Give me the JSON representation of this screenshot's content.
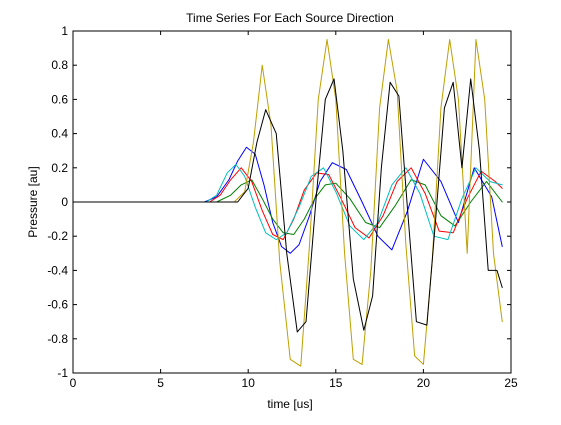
{
  "chart_data": {
    "type": "line",
    "title": "Time Series For Each Source Direction",
    "xlabel": "time [us]",
    "ylabel": "Pressure [au]",
    "xlim": [
      0,
      25
    ],
    "ylim": [
      -1,
      1
    ],
    "xticks": [
      0,
      5,
      10,
      15,
      20,
      25
    ],
    "yticks": [
      -1,
      -0.8,
      -0.6,
      -0.4,
      -0.2,
      0,
      0.2,
      0.4,
      0.6,
      0.8,
      1
    ],
    "xtick_labels": [
      "0",
      "5",
      "10",
      "15",
      "20",
      "25"
    ],
    "ytick_labels": [
      "-1",
      "-0.8",
      "-0.6",
      "-0.4",
      "-0.2",
      "0",
      "0.2",
      "0.4",
      "0.6",
      "0.8",
      "1"
    ],
    "grid": false,
    "legend": "none",
    "series": [
      {
        "color": "#0000ff",
        "x": [
          0,
          7.5,
          8.2,
          8.9,
          9.4,
          9.9,
          10.4,
          10.9,
          11.4,
          11.9,
          12.4,
          12.9,
          13.5,
          14.1,
          14.8,
          15.6,
          16.5,
          17.4,
          18.2,
          19.1,
          20.0,
          21.0,
          22.0,
          22.9,
          23.9,
          24.5
        ],
        "y": [
          0,
          0,
          0.03,
          0.13,
          0.24,
          0.32,
          0.28,
          0.1,
          -0.12,
          -0.26,
          -0.3,
          -0.25,
          -0.08,
          0.12,
          0.23,
          0.19,
          0,
          -0.2,
          -0.28,
          -0.05,
          0.25,
          0.12,
          -0.12,
          0.2,
          0.03,
          -0.26
        ]
      },
      {
        "color": "#008000",
        "x": [
          0,
          8.2,
          9.0,
          9.6,
          10.2,
          10.8,
          11.4,
          12.0,
          12.6,
          13.2,
          13.8,
          14.4,
          15.0,
          15.8,
          16.7,
          17.5,
          18.4,
          19.3,
          20.1,
          21.0,
          21.8,
          22.7,
          23.6,
          24.5
        ],
        "y": [
          0,
          0,
          0.04,
          0.1,
          0.13,
          0.02,
          -0.1,
          -0.18,
          -0.19,
          -0.1,
          0.02,
          0.1,
          0.11,
          0.02,
          -0.12,
          -0.15,
          -0.02,
          0.13,
          0.1,
          -0.08,
          -0.14,
          0.0,
          0.12,
          0.0
        ]
      },
      {
        "color": "#ff0000",
        "x": [
          0,
          7.8,
          8.4,
          9.0,
          9.6,
          10.2,
          10.8,
          11.4,
          12.0,
          12.6,
          13.2,
          13.9,
          14.6,
          15.3,
          16.1,
          16.9,
          17.7,
          18.5,
          19.3,
          20.1,
          20.9,
          21.7,
          22.5,
          23.3,
          24.1,
          24.5
        ],
        "y": [
          0,
          0,
          0.04,
          0.13,
          0.2,
          0.12,
          -0.05,
          -0.19,
          -0.22,
          -0.1,
          0.07,
          0.17,
          0.16,
          0.02,
          -0.15,
          -0.21,
          -0.08,
          0.12,
          0.2,
          0.05,
          -0.17,
          -0.18,
          0.02,
          0.18,
          0.12,
          0.08
        ]
      },
      {
        "color": "#00bfbf",
        "x": [
          0,
          7.6,
          8.2,
          8.8,
          9.3,
          9.8,
          10.4,
          11.0,
          11.6,
          12.2,
          12.9,
          13.6,
          14.3,
          15.0,
          15.8,
          16.6,
          17.4,
          18.2,
          19.0,
          19.8,
          20.6,
          21.4,
          22.2,
          23.0,
          23.8,
          24.5
        ],
        "y": [
          0,
          0,
          0.04,
          0.17,
          0.22,
          0.15,
          -0.03,
          -0.18,
          -0.22,
          -0.18,
          -0.03,
          0.15,
          0.2,
          0.06,
          -0.14,
          -0.22,
          -0.12,
          0.1,
          0.2,
          0.05,
          -0.2,
          -0.22,
          0.02,
          0.2,
          0.12,
          0.1
        ]
      },
      {
        "color": "#bf9f00",
        "x": [
          0,
          9.2,
          9.8,
          10.3,
          10.8,
          11.3,
          11.8,
          12.4,
          13.0,
          13.5,
          14.0,
          14.5,
          15.0,
          15.5,
          16.0,
          16.5,
          17.0,
          17.5,
          18.0,
          18.5,
          19.0,
          19.5,
          20.0,
          20.5,
          21.0,
          21.5,
          22.0,
          22.5,
          23.0,
          23.5,
          24.0,
          24.5
        ],
        "y": [
          0,
          0,
          0.06,
          0.35,
          0.8,
          0.45,
          -0.35,
          -0.92,
          -0.96,
          -0.25,
          0.6,
          0.95,
          0.6,
          -0.3,
          -0.92,
          -0.95,
          -0.4,
          0.55,
          0.95,
          0.65,
          -0.25,
          -0.9,
          -0.95,
          -0.35,
          0.55,
          0.95,
          0.6,
          -0.3,
          0.95,
          0.6,
          -0.3,
          -0.7
        ]
      },
      {
        "color": "#000000",
        "x": [
          0,
          9.4,
          10.0,
          10.5,
          11.0,
          11.6,
          12.2,
          12.8,
          13.3,
          13.9,
          14.4,
          14.9,
          15.4,
          16.0,
          16.6,
          17.1,
          17.6,
          18.1,
          18.6,
          19.1,
          19.6,
          20.2,
          20.7,
          21.2,
          21.7,
          22.2,
          22.7,
          23.2,
          23.7,
          24.2,
          24.5
        ],
        "y": [
          0,
          0,
          0.08,
          0.35,
          0.54,
          0.4,
          -0.3,
          -0.76,
          -0.7,
          0.05,
          0.6,
          0.72,
          0.3,
          -0.45,
          -0.75,
          -0.55,
          0.2,
          0.7,
          0.62,
          -0.05,
          -0.7,
          -0.72,
          -0.1,
          0.55,
          0.7,
          0.2,
          0.72,
          0.3,
          -0.4,
          -0.4,
          -0.5
        ]
      }
    ]
  }
}
